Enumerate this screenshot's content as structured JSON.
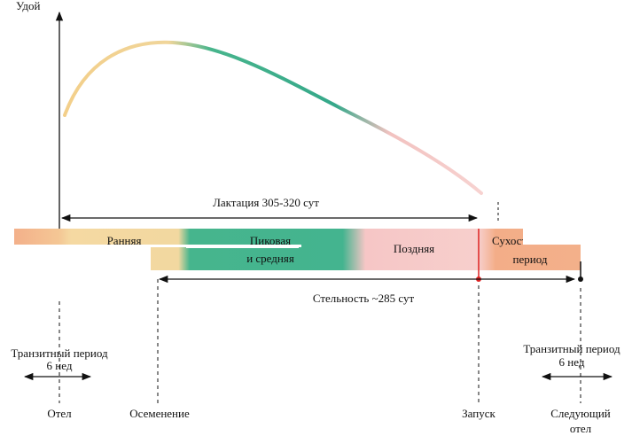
{
  "axis_label": "Удой",
  "lactation": "Лактация 305-320 сут",
  "pregnancy": "Стельность ~285 сут",
  "phases": [
    "Ранняя",
    "Пиковая",
    "и средняя",
    "Поздняя",
    "Сухостойный",
    "период"
  ],
  "transit_left": {
    "title": "Транзитный период",
    "duration": "6 нед"
  },
  "transit_right": {
    "title": "Транзитный период",
    "duration": "6 нед"
  },
  "events": [
    "Отел",
    "Осеменение",
    "Запуск",
    "Следующий",
    "отел"
  ]
}
